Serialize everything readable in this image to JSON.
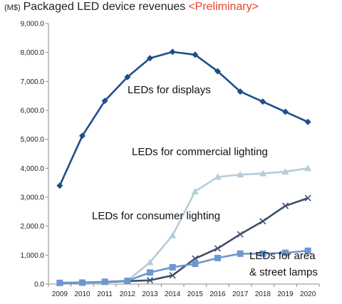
{
  "title": {
    "unit": "(M$)",
    "text": "Packaged LED device revenues",
    "note": "<Preliminary>",
    "note_color": "#e8432c"
  },
  "chart_data": {
    "type": "line",
    "x": [
      "2009",
      "2010",
      "2011",
      "2012",
      "2013",
      "2014",
      "2015",
      "2016",
      "2017",
      "2018",
      "2019",
      "2020"
    ],
    "ylim": [
      0,
      9000
    ],
    "yticks": [
      "0.0",
      "1,000.0",
      "2,000.0",
      "3,000.0",
      "4,000.0",
      "5,000.0",
      "6,000.0",
      "7,000.0",
      "8,000.0",
      "9,000.0"
    ],
    "grid": false,
    "legend": "none",
    "series": [
      {
        "name": "LEDs for displays",
        "color": "#1f4e8c",
        "marker": "diamond",
        "values": [
          3400,
          5120,
          6330,
          7150,
          7800,
          8020,
          7920,
          7350,
          6650,
          6300,
          5950,
          5600
        ]
      },
      {
        "name": "LEDs for commercial lighting",
        "color": "#b6ccd9",
        "marker": "triangle",
        "values": [
          50,
          60,
          80,
          120,
          750,
          1680,
          3200,
          3700,
          3780,
          3820,
          3880,
          4000
        ]
      },
      {
        "name": "LEDs for consumer lighting",
        "color": "#3c4f6b",
        "marker": "x",
        "values": [
          40,
          50,
          70,
          100,
          130,
          300,
          880,
          1230,
          1720,
          2170,
          2700,
          2970
        ]
      },
      {
        "name": "LEDs for area & street lamps",
        "color": "#6f97cf",
        "marker": "square",
        "values": [
          40,
          50,
          80,
          110,
          400,
          580,
          700,
          900,
          1050,
          1050,
          1080,
          1150
        ]
      }
    ],
    "annotations": [
      {
        "text": "LEDs for displays"
      },
      {
        "text": "LEDs for commercial lighting"
      },
      {
        "text": "LEDs for consumer lighting"
      },
      {
        "text": "LEDs for area"
      },
      {
        "text": "& street  lamps"
      }
    ]
  }
}
